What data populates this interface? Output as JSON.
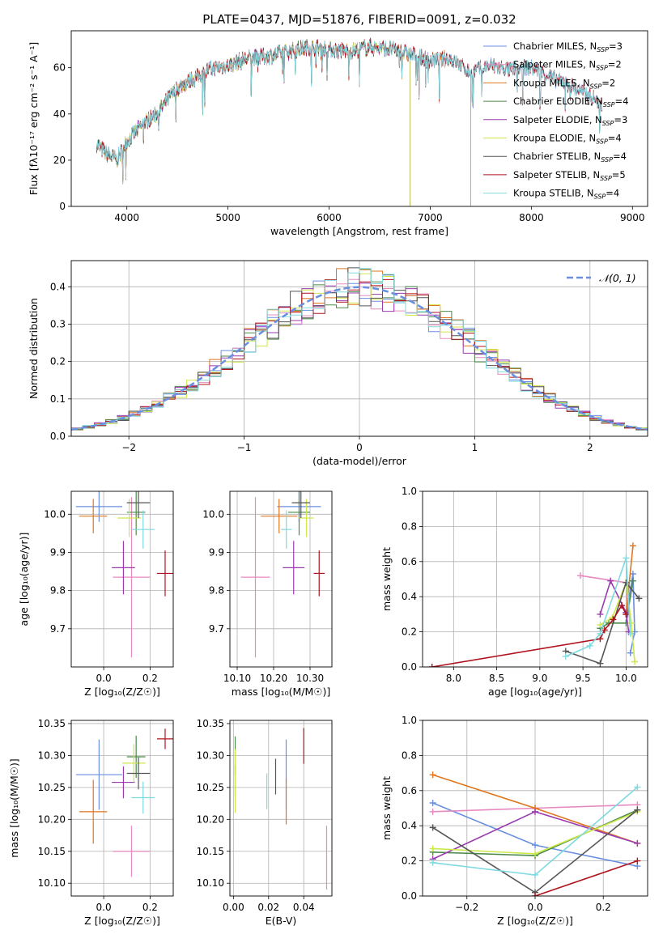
{
  "figure_title": "PLATE=0437, MJD=51876, FIBERID=0091, z=0.032",
  "colors": {
    "Chabrier MILES": "#6a8fe0",
    "Salpeter MILES": "#e789c0",
    "Kroupa MILES": "#e0761f",
    "Chabrier ELODIE": "#4a8a4a",
    "Salpeter ELODIE": "#9a3cb0",
    "Kroupa ELODIE": "#cde84a",
    "Chabrier STELIB": "#555555",
    "Salpeter STELIB": "#b0141e",
    "Kroupa STELIB": "#7fd9e0",
    "normal": "#6a8fe0"
  },
  "chart_data": [
    {
      "id": "spectrum",
      "type": "line",
      "xlabel": "wavelength [Angstrom, rest frame]",
      "ylabel": "Flux [fλ10⁻¹⁷ erg cm⁻² s⁻¹ A⁻¹]",
      "xlim": [
        3450,
        9150
      ],
      "ylim": [
        0,
        76
      ],
      "xticks": [
        4000,
        5000,
        6000,
        7000,
        8000,
        9000
      ],
      "yticks": [
        0,
        20,
        40,
        60
      ],
      "grid": false,
      "legend_position": "right",
      "continuum": {
        "x": [
          3700,
          3800,
          3900,
          4000,
          4100,
          4200,
          4300,
          4400,
          4500,
          4600,
          4700,
          4800,
          4900,
          5000,
          5200,
          5400,
          5600,
          5800,
          6000,
          6200,
          6400,
          6600,
          6800,
          7000,
          7200,
          7400,
          7600,
          7800,
          8000,
          8200,
          8400,
          8600,
          8800
        ],
        "y": [
          27,
          23,
          20,
          28,
          33,
          37,
          40,
          46,
          51,
          54,
          56,
          59,
          60,
          61,
          64,
          65,
          67,
          69,
          68,
          67,
          69,
          68,
          66,
          63,
          64,
          58,
          61,
          59,
          60,
          56,
          52,
          47,
          42
        ]
      },
      "series": [
        {
          "name": "Chabrier MILES, N_SSP=3",
          "label": "Chabrier MILES, N",
          "sub": "SSP",
          "n": "=3",
          "end": 8700
        },
        {
          "name": "Salpeter MILES, N_SSP=2",
          "label": "Salpeter MILES, N",
          "sub": "SSP",
          "n": "=2",
          "end": 8700
        },
        {
          "name": "Kroupa MILES, N_SSP=2",
          "label": "Kroupa MILES, N",
          "sub": "SSP",
          "n": "=2",
          "end": 7400
        },
        {
          "name": "Chabrier ELODIE, N_SSP=4",
          "label": "Chabrier ELODIE, N",
          "sub": "SSP",
          "n": "=4",
          "end": 6800
        },
        {
          "name": "Salpeter ELODIE, N_SSP=3",
          "label": "Salpeter ELODIE, N",
          "sub": "SSP",
          "n": "=3",
          "end": 6800
        },
        {
          "name": "Kroupa ELODIE, N_SSP=4",
          "label": "Kroupa ELODIE, N",
          "sub": "SSP",
          "n": "=4",
          "end": 6800
        },
        {
          "name": "Chabrier STELIB, N_SSP=4",
          "label": "Chabrier STELIB, N",
          "sub": "SSP",
          "n": "=4",
          "end": 8700
        },
        {
          "name": "Salpeter STELIB, N_SSP=5",
          "label": "Salpeter STELIB, N",
          "sub": "SSP",
          "n": "=5",
          "end": 8700
        },
        {
          "name": "Kroupa STELIB, N_SSP=4",
          "label": "Kroupa STELIB, N",
          "sub": "SSP",
          "n": "=4",
          "end": 8700
        }
      ]
    },
    {
      "id": "residuals",
      "type": "line",
      "xlabel": "(data-model)/error",
      "ylabel": "Normed distribution",
      "xlim": [
        -2.5,
        2.5
      ],
      "ylim": [
        0,
        0.47
      ],
      "xticks": [
        -2,
        -1,
        0,
        1,
        2
      ],
      "yticks": [
        0.0,
        0.1,
        0.2,
        0.3,
        0.4
      ],
      "grid": true,
      "legend_position": "top-right",
      "legend_label": "𝒩(0, 1)",
      "bin_width": 0.1
    },
    {
      "id": "age-vs-z",
      "type": "scatter",
      "xlabel": "Z [log₁₀(Z/Z☉)]",
      "ylabel": "age [log₁₀(age/yr)]",
      "xlim": [
        -0.14,
        0.3
      ],
      "ylim": [
        9.6,
        10.06
      ],
      "xticks": [
        0.0,
        0.2
      ],
      "yticks": [
        9.7,
        9.8,
        9.9,
        10.0
      ],
      "grid": true,
      "points": [
        {
          "series": "Chabrier MILES",
          "x": -0.02,
          "y": 10.02,
          "xerr": 0.1,
          "yerr": 0.04
        },
        {
          "series": "Salpeter MILES",
          "x": 0.12,
          "y": 9.835,
          "xerr": 0.08,
          "yerr": 0.21
        },
        {
          "series": "Kroupa MILES",
          "x": -0.045,
          "y": 9.995,
          "xerr": 0.06,
          "yerr": 0.045
        },
        {
          "series": "Chabrier ELODIE",
          "x": 0.14,
          "y": 10.005,
          "xerr": 0.04,
          "yerr": 0.06
        },
        {
          "series": "Salpeter ELODIE",
          "x": 0.085,
          "y": 9.86,
          "xerr": 0.05,
          "yerr": 0.07
        },
        {
          "series": "Kroupa ELODIE",
          "x": 0.11,
          "y": 9.99,
          "xerr": 0.05,
          "yerr": 0.05
        },
        {
          "series": "Chabrier STELIB",
          "x": 0.15,
          "y": 10.03,
          "xerr": 0.05,
          "yerr": 0.04
        },
        {
          "series": "Salpeter STELIB",
          "x": 0.265,
          "y": 9.845,
          "xerr": 0.035,
          "yerr": 0.06
        },
        {
          "series": "Kroupa STELIB",
          "x": 0.17,
          "y": 9.96,
          "xerr": 0.05,
          "yerr": 0.05
        }
      ]
    },
    {
      "id": "age-vs-mass",
      "type": "scatter",
      "xlabel": "mass [log₁₀(M/M☉)]",
      "ylabel": "",
      "xlim": [
        10.08,
        10.36
      ],
      "ylim": [
        9.6,
        10.06
      ],
      "xticks": [
        10.1,
        10.2,
        10.3
      ],
      "yticks": [
        9.7,
        9.8,
        9.9,
        10.0
      ],
      "grid": true,
      "points": [
        {
          "series": "Chabrier MILES",
          "x": 10.27,
          "y": 10.02,
          "xerr": 0.06,
          "yerr": 0.04
        },
        {
          "series": "Salpeter MILES",
          "x": 10.15,
          "y": 9.835,
          "xerr": 0.04,
          "yerr": 0.21
        },
        {
          "series": "Kroupa MILES",
          "x": 10.215,
          "y": 9.995,
          "xerr": 0.05,
          "yerr": 0.045
        },
        {
          "series": "Chabrier ELODIE",
          "x": 10.27,
          "y": 10.005,
          "xerr": 0.03,
          "yerr": 0.06
        },
        {
          "series": "Salpeter ELODIE",
          "x": 10.255,
          "y": 9.86,
          "xerr": 0.03,
          "yerr": 0.07
        },
        {
          "series": "Kroupa ELODIE",
          "x": 10.29,
          "y": 9.99,
          "xerr": 0.02,
          "yerr": 0.05
        },
        {
          "series": "Chabrier STELIB",
          "x": 10.275,
          "y": 10.03,
          "xerr": 0.025,
          "yerr": 0.04
        },
        {
          "series": "Salpeter STELIB",
          "x": 10.325,
          "y": 9.845,
          "xerr": 0.015,
          "yerr": 0.06
        },
        {
          "series": "Kroupa STELIB",
          "x": 10.235,
          "y": 9.96,
          "xerr": 0.015,
          "yerr": 0.05
        }
      ]
    },
    {
      "id": "weight-vs-age",
      "type": "line",
      "xlabel": "age  [log₁₀(age/yr)]",
      "ylabel": "mass weight",
      "xlim": [
        7.64,
        10.25
      ],
      "ylim": [
        0,
        1.0
      ],
      "xticks": [
        8.0,
        8.5,
        9.0,
        9.5,
        10.0
      ],
      "yticks": [
        0.0,
        0.2,
        0.4,
        0.6,
        0.8,
        1.0
      ],
      "grid": true,
      "series": [
        {
          "name": "Chabrier MILES",
          "x": [
            10.0,
            10.08,
            10.1,
            10.05
          ],
          "y": [
            0.3,
            0.53,
            0.2,
            0.08
          ]
        },
        {
          "name": "Salpeter MILES",
          "x": [
            9.47,
            10.0,
            10.02
          ],
          "y": [
            0.52,
            0.48,
            0.3
          ]
        },
        {
          "name": "Kroupa MILES",
          "x": [
            10.08,
            10.0
          ],
          "y": [
            0.69,
            0.3
          ]
        },
        {
          "name": "Chabrier ELODIE",
          "x": [
            9.7,
            9.8,
            10.0,
            10.08
          ],
          "y": [
            0.22,
            0.25,
            0.25,
            0.49
          ]
        },
        {
          "name": "Salpeter ELODIE",
          "x": [
            9.7,
            9.82,
            10.0,
            10.03
          ],
          "y": [
            0.3,
            0.49,
            0.31,
            0.2
          ]
        },
        {
          "name": "Kroupa ELODIE",
          "x": [
            9.7,
            9.84,
            10.0,
            10.06,
            10.1
          ],
          "y": [
            0.24,
            0.28,
            0.48,
            0.25,
            0.03
          ]
        },
        {
          "name": "Chabrier STELIB",
          "x": [
            9.3,
            9.7,
            10.0,
            10.15
          ],
          "y": [
            0.09,
            0.02,
            0.48,
            0.39
          ]
        },
        {
          "name": "Salpeter STELIB",
          "x": [
            7.75,
            9.7,
            9.75,
            9.85,
            9.95,
            10.0
          ],
          "y": [
            0.0,
            0.16,
            0.21,
            0.27,
            0.35,
            0.3
          ]
        },
        {
          "name": "Kroupa STELIB",
          "x": [
            9.3,
            9.58,
            9.7,
            10.0,
            10.05
          ],
          "y": [
            0.06,
            0.12,
            0.19,
            0.62,
            0.19
          ]
        }
      ]
    },
    {
      "id": "mass-vs-z",
      "type": "scatter",
      "xlabel": "Z [log₁₀(Z/Z☉)]",
      "ylabel": "mass [log₁₀(M/M☉)]",
      "xlim": [
        -0.14,
        0.3
      ],
      "ylim": [
        10.08,
        10.355
      ],
      "xticks": [
        0.0,
        0.2
      ],
      "yticks": [
        10.1,
        10.15,
        10.2,
        10.25,
        10.3,
        10.35
      ],
      "grid": true,
      "points": [
        {
          "series": "Chabrier MILES",
          "x": -0.02,
          "y": 10.27,
          "xerr": 0.1,
          "yerr": 0.055
        },
        {
          "series": "Salpeter MILES",
          "x": 0.12,
          "y": 10.15,
          "xerr": 0.08,
          "yerr": 0.04
        },
        {
          "series": "Kroupa MILES",
          "x": -0.045,
          "y": 10.212,
          "xerr": 0.06,
          "yerr": 0.05
        },
        {
          "series": "Chabrier ELODIE",
          "x": 0.14,
          "y": 10.298,
          "xerr": 0.04,
          "yerr": 0.033
        },
        {
          "series": "Salpeter ELODIE",
          "x": 0.085,
          "y": 10.258,
          "xerr": 0.05,
          "yerr": 0.025
        },
        {
          "series": "Kroupa ELODIE",
          "x": 0.13,
          "y": 10.288,
          "xerr": 0.05,
          "yerr": 0.03
        },
        {
          "series": "Chabrier STELIB",
          "x": 0.15,
          "y": 10.272,
          "xerr": 0.05,
          "yerr": 0.025
        },
        {
          "series": "Salpeter STELIB",
          "x": 0.265,
          "y": 10.326,
          "xerr": 0.035,
          "yerr": 0.016
        },
        {
          "series": "Kroupa STELIB",
          "x": 0.17,
          "y": 10.234,
          "xerr": 0.05,
          "yerr": 0.025
        }
      ]
    },
    {
      "id": "mass-vs-ebv",
      "type": "scatter",
      "xlabel": "E(B-V)",
      "ylabel": "",
      "xlim": [
        -0.002,
        0.056
      ],
      "ylim": [
        10.08,
        10.355
      ],
      "xticks": [
        0.0,
        0.02,
        0.04
      ],
      "yticks": [
        10.1,
        10.15,
        10.2,
        10.25,
        10.3,
        10.35
      ],
      "grid": true,
      "points": [
        {
          "series": "Chabrier MILES",
          "x": 0.03,
          "y": 10.27,
          "xerr": 0,
          "yerr": 0.055
        },
        {
          "series": "Salpeter MILES",
          "x": 0.053,
          "y": 10.14,
          "xerr": 0,
          "yerr": 0.05
        },
        {
          "series": "Kroupa MILES",
          "x": 0.03,
          "y": 10.228,
          "xerr": 0,
          "yerr": 0.036
        },
        {
          "series": "Chabrier ELODIE",
          "x": 0.001,
          "y": 10.3,
          "xerr": 0,
          "yerr": 0.03
        },
        {
          "series": "Salpeter ELODIE",
          "x": 0.001,
          "y": 10.26,
          "xerr": 0,
          "yerr": 0.025
        },
        {
          "series": "Kroupa ELODIE",
          "x": 0.001,
          "y": 10.26,
          "xerr": 0,
          "yerr": 0.05
        },
        {
          "series": "Chabrier STELIB",
          "x": 0.024,
          "y": 10.267,
          "xerr": 0,
          "yerr": 0.028
        },
        {
          "series": "Salpeter STELIB",
          "x": 0.04,
          "y": 10.315,
          "xerr": 0,
          "yerr": 0.028
        },
        {
          "series": "Kroupa STELIB",
          "x": 0.019,
          "y": 10.244,
          "xerr": 0,
          "yerr": 0.028
        }
      ]
    },
    {
      "id": "weight-vs-z",
      "type": "line",
      "xlabel": "Z [log₁₀(Z/Z☉)]",
      "ylabel": "mass weight",
      "xlim": [
        -0.33,
        0.33
      ],
      "ylim": [
        0,
        1.0
      ],
      "xticks": [
        -0.2,
        0.0,
        0.2
      ],
      "yticks": [
        0.0,
        0.2,
        0.4,
        0.6,
        0.8,
        1.0
      ],
      "grid": true,
      "series": [
        {
          "name": "Chabrier MILES",
          "x": [
            -0.3,
            0.0,
            0.3
          ],
          "y": [
            0.53,
            0.29,
            0.17
          ]
        },
        {
          "name": "Salpeter MILES",
          "x": [
            -0.3,
            0.0,
            0.3
          ],
          "y": [
            0.48,
            0.5,
            0.52
          ]
        },
        {
          "name": "Kroupa MILES",
          "x": [
            -0.3,
            0.0,
            0.3
          ],
          "y": [
            0.69,
            0.5,
            0.3
          ]
        },
        {
          "name": "Chabrier ELODIE",
          "x": [
            -0.3,
            0.0,
            0.3
          ],
          "y": [
            0.25,
            0.23,
            0.49
          ]
        },
        {
          "name": "Salpeter ELODIE",
          "x": [
            -0.3,
            0.0,
            0.3
          ],
          "y": [
            0.21,
            0.48,
            0.3
          ]
        },
        {
          "name": "Kroupa ELODIE",
          "x": [
            -0.3,
            0.0,
            0.3
          ],
          "y": [
            0.27,
            0.24,
            0.48
          ]
        },
        {
          "name": "Chabrier STELIB",
          "x": [
            -0.3,
            0.0,
            0.3
          ],
          "y": [
            0.39,
            0.02,
            0.49
          ]
        },
        {
          "name": "Salpeter STELIB",
          "x": [
            0.0,
            0.3
          ],
          "y": [
            0.0,
            0.2
          ]
        },
        {
          "name": "Kroupa STELIB",
          "x": [
            -0.3,
            0.0,
            0.3
          ],
          "y": [
            0.19,
            0.12,
            0.62
          ]
        }
      ]
    }
  ]
}
